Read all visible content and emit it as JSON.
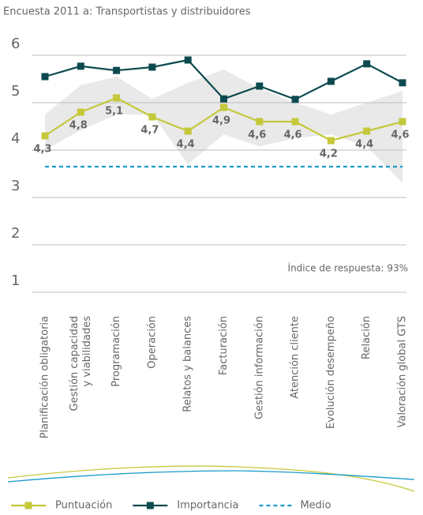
{
  "chart_data": {
    "type": "line",
    "title": "Encuesta 2011 a:  Transportistas y distribuidores",
    "annotation": "Índice de respuesta: 93%",
    "categories": [
      [
        "Planificación obligatoria"
      ],
      [
        "Gestión capacidad",
        "y viabilidades"
      ],
      [
        "Programación"
      ],
      [
        "Operación"
      ],
      [
        "Relatos y balances"
      ],
      [
        "Facturación"
      ],
      [
        "Gestión información"
      ],
      [
        "Atención cliente"
      ],
      [
        "Evolución desempeño"
      ],
      [
        "Relación"
      ],
      [
        "Valoración global GTS"
      ]
    ],
    "ylim": [
      1,
      6
    ],
    "yticks": [
      1,
      2,
      3,
      4,
      5,
      6
    ],
    "grid": true,
    "band": {
      "color": "#e9e9e9",
      "upper": [
        4.75,
        5.37,
        5.55,
        5.08,
        5.42,
        5.7,
        5.3,
        5.0,
        4.75,
        5.0,
        5.25
      ],
      "lower": [
        4.0,
        4.42,
        4.75,
        4.75,
        3.7,
        4.33,
        4.08,
        4.25,
        4.33,
        4.08,
        3.3
      ]
    },
    "series": [
      {
        "name": "Puntuación",
        "color": "#c4c83a",
        "values": [
          4.3,
          4.8,
          5.1,
          4.7,
          4.4,
          4.9,
          4.6,
          4.6,
          4.2,
          4.4,
          4.6
        ],
        "value_labels": [
          "4,3",
          "4,8",
          "5,1",
          "4,7",
          "4,4",
          "4,9",
          "4,6",
          "4,6",
          "4,2",
          "4,4",
          "4,6"
        ]
      },
      {
        "name": "Importancia",
        "color": "#0d4a4f",
        "values": [
          5.55,
          5.77,
          5.68,
          5.75,
          5.9,
          5.08,
          5.35,
          5.07,
          5.45,
          5.82,
          5.42
        ]
      }
    ],
    "reference": {
      "name": "Medio",
      "color": "#1a9bc8",
      "value": 3.65
    }
  }
}
